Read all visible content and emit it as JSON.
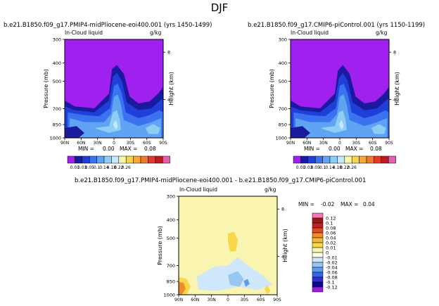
{
  "page": {
    "title": "DJF"
  },
  "palette": {
    "cloud": [
      "#a020f0",
      "#1a1a9e",
      "#1f3fd8",
      "#3a72ef",
      "#5fa3f2",
      "#8ecdf4",
      "#c3e9fb",
      "#f2f7a9",
      "#f6d54a",
      "#f6a833",
      "#f07a2c",
      "#e43a2a",
      "#c01820",
      "#e35fb0"
    ],
    "diff": [
      "#9a1ee0",
      "#0a0a8e",
      "#2f2fcf",
      "#3168e8",
      "#5f9cf0",
      "#98c8f2",
      "#cfe7fb",
      "#fdfde0",
      "#f9f5b0",
      "#f6d84a",
      "#f4b83a",
      "#f08a2a",
      "#e04a24",
      "#c0202a",
      "#9a1818",
      "#f27ab8"
    ],
    "background_fill": "#a020f0"
  },
  "charts": {
    "left": {
      "title": "b.e21.B1850.f09_g17.PMIP4-midPliocene-eoi400.001  (yrs 1450-1499)",
      "varname": "In-Cloud liquid",
      "units": "g/kg",
      "ylabel": "Pressure (mb)",
      "ylabel_right": "Height (km)",
      "min_label": "MIN =",
      "min_value": "0.00",
      "max_label": "MAX =",
      "max_value": "0.08"
    },
    "right": {
      "title": "b.e21.B1850.f09_g17.CMIP6-piControl.001  (yrs 1150-1199)",
      "varname": "In-Cloud liquid",
      "units": "g/kg",
      "ylabel": "Pressure (mb)",
      "ylabel_right": "Height (km)",
      "min_label": "MIN =",
      "min_value": "0.00",
      "max_label": "MAX =",
      "max_value": "0.08"
    },
    "diff": {
      "title": "b.e21.B1850.f09_g17.PMIP4-midPliocene-eoi400.001  -  b.e21.B1850.f09_g17.CMIP6-piControl.001",
      "varname": "In-Cloud liquid",
      "units": "g/kg",
      "ylabel": "Pressure (mb)",
      "ylabel_right": "Height (km)",
      "min_label": "MIN =",
      "min_value": "-0.02",
      "max_label": "MAX =",
      "max_value": "0.04"
    }
  },
  "chart_data": [
    {
      "type": "heatmap",
      "panel": "left",
      "title": "b.e21.B1850.f09_g17.PMIP4-midPliocene-eoi400.001  (yrs 1450-1499)",
      "ylabel": "Pressure (mb)",
      "x_ticks": [
        "90N",
        "60N",
        "30N",
        "0",
        "30S",
        "60S",
        "90S"
      ],
      "y_ticks": [
        300,
        400,
        500,
        700,
        850,
        1000
      ],
      "y_ticks_right": [
        8,
        4
      ],
      "contour_levels": [
        0.01,
        0.03,
        0.05,
        0.1,
        0.14,
        0.18,
        0.22,
        0.26
      ],
      "min": 0.0,
      "max": 0.08
    },
    {
      "type": "heatmap",
      "panel": "right",
      "title": "b.e21.B1850.f09_g17.CMIP6-piControl.001  (yrs 1150-1199)",
      "ylabel": "Pressure (mb)",
      "x_ticks": [
        "90N",
        "60N",
        "30N",
        "0",
        "30S",
        "60S",
        "90S"
      ],
      "y_ticks": [
        300,
        400,
        500,
        700,
        850,
        1000
      ],
      "y_ticks_right": [
        8,
        4
      ],
      "contour_levels": [
        0.01,
        0.03,
        0.05,
        0.1,
        0.14,
        0.18,
        0.22,
        0.26
      ],
      "min": 0.0,
      "max": 0.08
    },
    {
      "type": "heatmap",
      "panel": "diff",
      "title": "b.e21.B1850.f09_g17.PMIP4-midPliocene-eoi400.001  -  b.e21.B1850.f09_g17.CMIP6-piControl.001",
      "ylabel": "Pressure (mb)",
      "x_ticks": [
        "90N",
        "60N",
        "30N",
        "0",
        "30S",
        "60S",
        "90S"
      ],
      "y_ticks": [
        300,
        400,
        500,
        700,
        850,
        1000
      ],
      "y_ticks_right": [
        8,
        4
      ],
      "contour_levels": [
        0.12,
        0.1,
        0.08,
        0.06,
        0.04,
        0.02,
        0.01,
        0,
        -0.01,
        -0.02,
        -0.04,
        -0.06,
        -0.08,
        -0.1,
        -0.12
      ],
      "min": -0.02,
      "max": 0.04
    }
  ],
  "colorbar_top": {
    "labels": [
      "0.01",
      "0.03",
      "0.05",
      "0.1",
      "0.14",
      "0.18",
      "0.22",
      "0.26"
    ]
  },
  "colorbar_diff": {
    "labels": [
      "0.12",
      "0.1",
      "0.08",
      "0.06",
      "0.04",
      "0.02",
      "0.01",
      "0",
      "-0.01",
      "-0.02",
      "-0.04",
      "-0.06",
      "-0.08",
      "-0.1",
      "-0.12"
    ]
  }
}
